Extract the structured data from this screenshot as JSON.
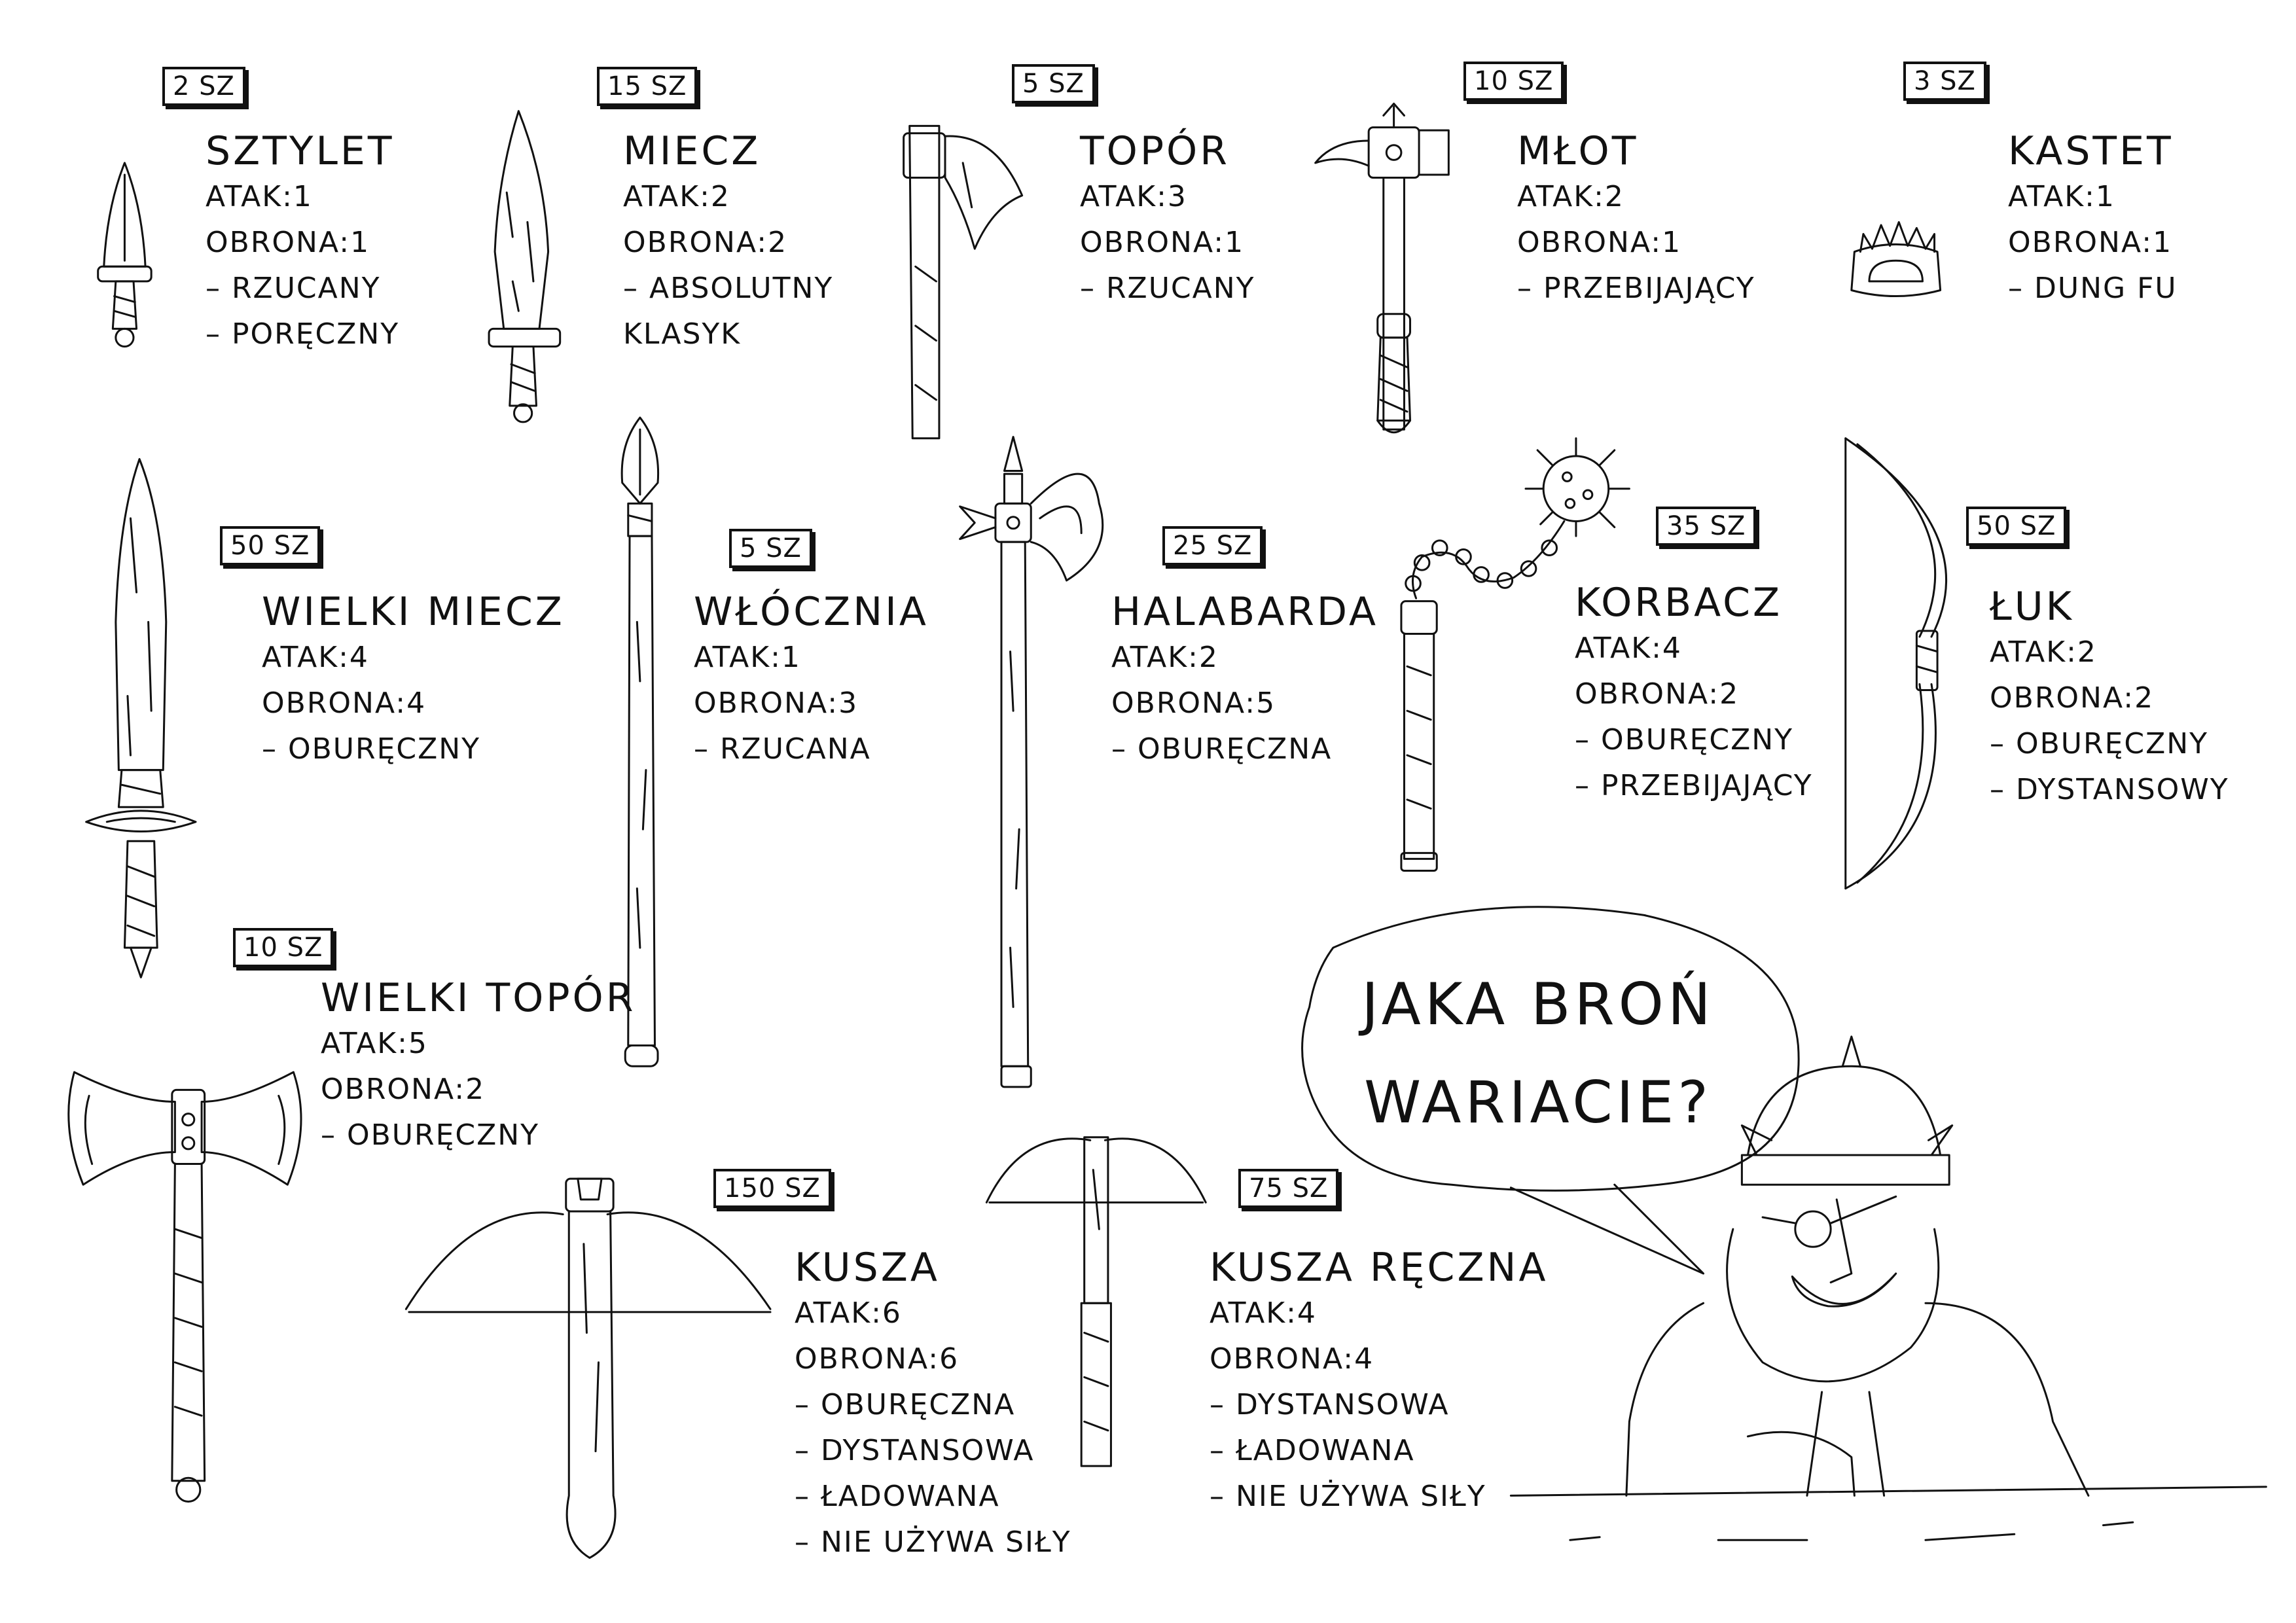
{
  "weapons": [
    {
      "id": "sztylet",
      "price": "2 SZ",
      "name": "SZTYLET",
      "attack": "ATAK:1",
      "defense": "OBRONA:1",
      "traits": [
        "– RZUCANY",
        "– PORĘCZNY"
      ]
    },
    {
      "id": "miecz",
      "price": "15 SZ",
      "name": "MIECZ",
      "attack": "ATAK:2",
      "defense": "OBRONA:2",
      "traits": [
        "– ABSOLUTNY",
        "KLASYK"
      ]
    },
    {
      "id": "topor",
      "price": "5 SZ",
      "name": "TOPÓR",
      "attack": "ATAK:3",
      "defense": "OBRONA:1",
      "traits": [
        "– RZUCANY"
      ]
    },
    {
      "id": "mlot",
      "price": "10 SZ",
      "name": "MŁOT",
      "attack": "ATAK:2",
      "defense": "OBRONA:1",
      "traits": [
        "– PRZEBIJAJĄCY"
      ]
    },
    {
      "id": "kastet",
      "price": "3 SZ",
      "name": "KASTET",
      "attack": "ATAK:1",
      "defense": "OBRONA:1",
      "traits": [
        "– DUNG FU"
      ]
    },
    {
      "id": "wielki_miecz",
      "price": "50 SZ",
      "name": "WIELKI MIECZ",
      "attack": "ATAK:4",
      "defense": "OBRONA:4",
      "traits": [
        "– OBURĘCZNY"
      ]
    },
    {
      "id": "wlocznia",
      "price": "5 SZ",
      "name": "WŁÓCZNIA",
      "attack": "ATAK:1",
      "defense": "OBRONA:3",
      "traits": [
        "– RZUCANA"
      ]
    },
    {
      "id": "halabarda",
      "price": "25 SZ",
      "name": "HALABARDA",
      "attack": "ATAK:2",
      "defense": "OBRONA:5",
      "traits": [
        "– OBURĘCZNA"
      ]
    },
    {
      "id": "korbacz",
      "price": "35 SZ",
      "name": "KORBACZ",
      "attack": "ATAK:4",
      "defense": "OBRONA:2",
      "traits": [
        "– OBURĘCZNY",
        "– PRZEBIJAJĄCY"
      ]
    },
    {
      "id": "luk",
      "price": "50 SZ",
      "name": "ŁUK",
      "attack": "ATAK:2",
      "defense": "OBRONA:2",
      "traits": [
        "– OBURĘCZNY",
        "– DYSTANSOWY"
      ]
    },
    {
      "id": "wielki_topor",
      "price": "10 SZ",
      "name": "WIELKI TOPÓR",
      "attack": "ATAK:5",
      "defense": "OBRONA:2",
      "traits": [
        "– OBURĘCZNY"
      ]
    },
    {
      "id": "kusza",
      "price": "150 SZ",
      "name": "KUSZA",
      "attack": "ATAK:6",
      "defense": "OBRONA:6",
      "traits": [
        "– OBURĘCZNA",
        "– DYSTANSOWA",
        "– ŁADOWANA",
        "– NIE UŻYWA SIŁY"
      ]
    },
    {
      "id": "kusza_reczna",
      "price": "75 SZ",
      "name": "KUSZA RĘCZNA",
      "attack": "ATAK:4",
      "defense": "OBRONA:4",
      "traits": [
        "– DYSTANSOWA",
        "– ŁADOWANA",
        "– NIE UŻYWA SIŁY"
      ]
    }
  ],
  "speech": {
    "line1": "JAKA BROŃ",
    "line2": "WARIACIE?"
  },
  "icons": [
    "dagger-icon",
    "sword-icon",
    "axe-icon",
    "hammer-icon",
    "knuckles-icon",
    "greatsword-icon",
    "spear-icon",
    "halberd-icon",
    "flail-icon",
    "bow-icon",
    "greataxe-icon",
    "crossbow-icon",
    "hand-crossbow-icon",
    "dwarf-merchant-icon"
  ],
  "colors": {
    "ink": "#111111",
    "paper": "#ffffff"
  }
}
